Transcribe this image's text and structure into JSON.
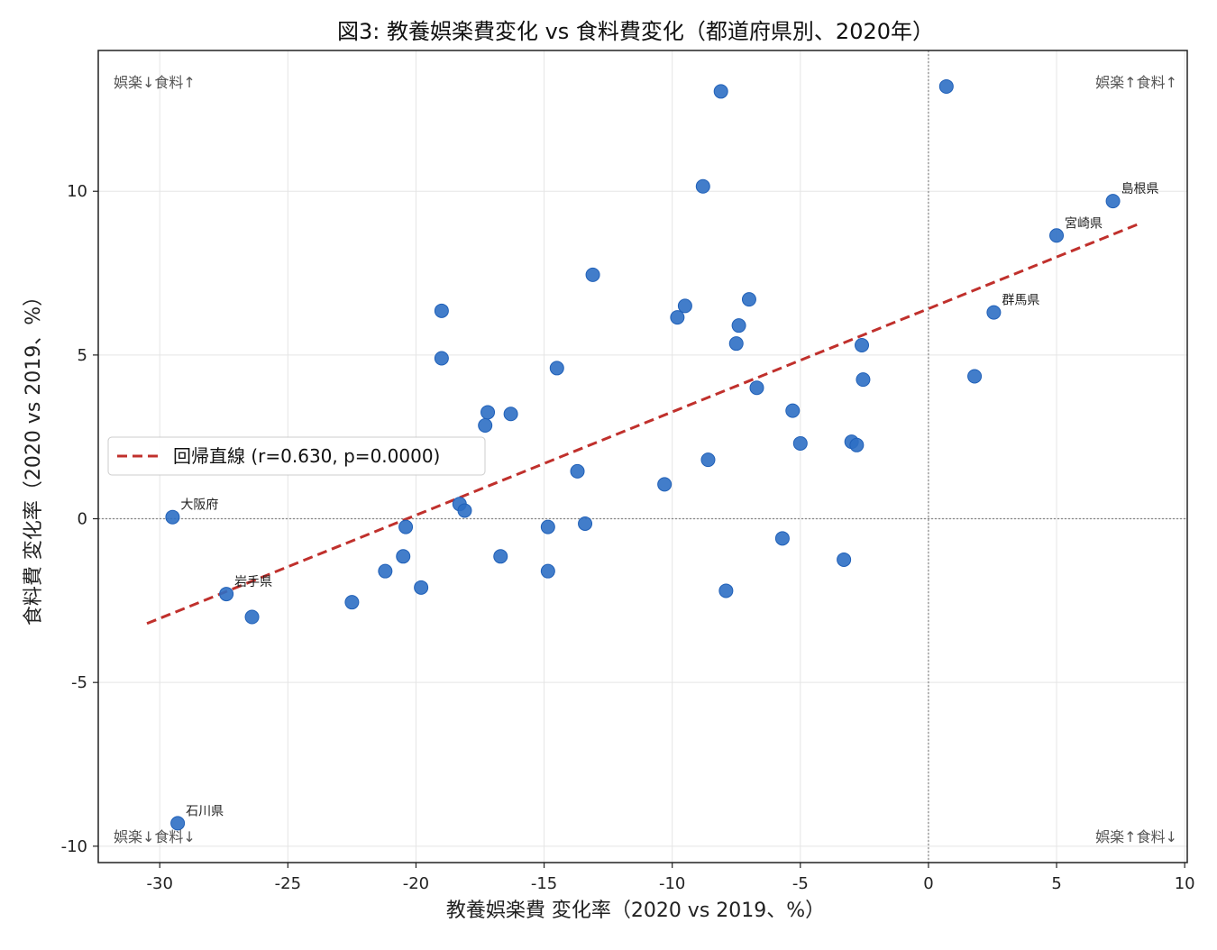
{
  "chart_data": {
    "type": "scatter",
    "title": "図3: 教養娯楽費変化 vs 食料費変化（都道府県別、2020年）",
    "xlabel": "教養娯楽費 変化率（2020 vs 2019、%）",
    "ylabel": "食料費 変化率（2020 vs 2019、%）",
    "xlim": [
      -32.4,
      10.1
    ],
    "ylim": [
      -10.5,
      14.3
    ],
    "xticks": [
      -30,
      -25,
      -20,
      -15,
      -10,
      -5,
      0,
      5,
      10
    ],
    "yticks": [
      -10,
      -5,
      0,
      5,
      10
    ],
    "grid": true,
    "legend": {
      "position": "center-left",
      "entries": [
        "回帰直線 (r=0.630, p=0.0000)"
      ]
    },
    "regression": {
      "label": "回帰直線 (r=0.630, p=0.0000)",
      "x": [
        -30.5,
        8.2
      ],
      "y": [
        -3.2,
        9.0
      ],
      "color": "#c0302c"
    },
    "quadrant_labels": {
      "top_left": "娯楽↓食料↑",
      "top_right": "娯楽↑食料↑",
      "bottom_left": "娯楽↓食料↓",
      "bottom_right": "娯楽↑食料↓"
    },
    "series": [
      {
        "color": "#2d6fc4",
        "points": [
          {
            "x": -29.5,
            "y": 0.05,
            "label": "大阪府"
          },
          {
            "x": -27.4,
            "y": -2.3,
            "label": "岩手県"
          },
          {
            "x": -26.4,
            "y": -3.0
          },
          {
            "x": -29.3,
            "y": -9.3,
            "label": "石川県"
          },
          {
            "x": -22.5,
            "y": -2.55
          },
          {
            "x": -21.2,
            "y": -1.6
          },
          {
            "x": -20.5,
            "y": -1.15
          },
          {
            "x": -20.4,
            "y": -0.25
          },
          {
            "x": -19.8,
            "y": -2.1
          },
          {
            "x": -19.0,
            "y": 6.35
          },
          {
            "x": -19.0,
            "y": 4.9
          },
          {
            "x": -18.3,
            "y": 0.45
          },
          {
            "x": -18.1,
            "y": 0.25
          },
          {
            "x": -17.2,
            "y": 3.25
          },
          {
            "x": -17.3,
            "y": 2.85
          },
          {
            "x": -16.7,
            "y": -1.15
          },
          {
            "x": -16.3,
            "y": 3.2
          },
          {
            "x": -14.85,
            "y": -0.25
          },
          {
            "x": -14.85,
            "y": -1.6
          },
          {
            "x": -14.5,
            "y": 4.6
          },
          {
            "x": -13.7,
            "y": 1.45
          },
          {
            "x": -13.4,
            "y": -0.15
          },
          {
            "x": -13.1,
            "y": 7.45
          },
          {
            "x": -10.3,
            "y": 1.05
          },
          {
            "x": -9.8,
            "y": 6.15
          },
          {
            "x": -9.5,
            "y": 6.5
          },
          {
            "x": -8.8,
            "y": 10.15
          },
          {
            "x": -8.6,
            "y": 1.8
          },
          {
            "x": -8.1,
            "y": 13.05
          },
          {
            "x": -7.9,
            "y": -2.2
          },
          {
            "x": -7.4,
            "y": 5.9
          },
          {
            "x": -7.5,
            "y": 5.35
          },
          {
            "x": -7.0,
            "y": 6.7
          },
          {
            "x": -6.7,
            "y": 4.0
          },
          {
            "x": -5.7,
            "y": -0.6
          },
          {
            "x": -5.3,
            "y": 3.3
          },
          {
            "x": -5.0,
            "y": 2.3
          },
          {
            "x": -3.3,
            "y": -1.25
          },
          {
            "x": -3.0,
            "y": 2.35
          },
          {
            "x": -2.8,
            "y": 2.25
          },
          {
            "x": -2.6,
            "y": 5.3
          },
          {
            "x": -2.55,
            "y": 4.25
          },
          {
            "x": 0.7,
            "y": 13.2
          },
          {
            "x": 1.8,
            "y": 4.35
          },
          {
            "x": 2.55,
            "y": 6.3,
            "label": "群馬県"
          },
          {
            "x": 5.0,
            "y": 8.65,
            "label": "宮崎県"
          },
          {
            "x": 7.2,
            "y": 9.7,
            "label": "島根県"
          }
        ]
      }
    ]
  }
}
